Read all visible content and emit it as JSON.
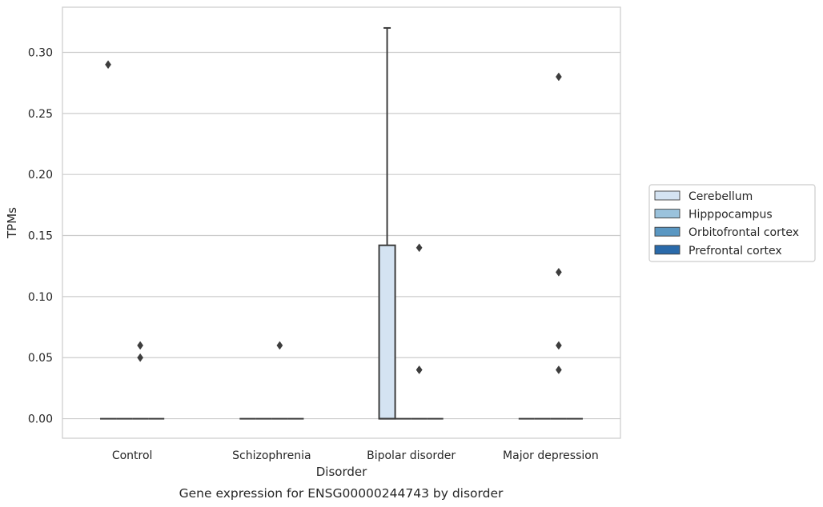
{
  "chart_data": {
    "type": "box",
    "xlabel": "Disorder",
    "ylabel": "TPMs",
    "caption": "Gene expression for ENSG00000244743 by disorder",
    "categories": [
      "Control",
      "Schizophrenia",
      "Bipolar disorder",
      "Major depression"
    ],
    "ylim": [
      -0.016,
      0.337
    ],
    "yticks": [
      "0.00",
      "0.05",
      "0.10",
      "0.15",
      "0.20",
      "0.25",
      "0.30"
    ],
    "ytick_values": [
      0,
      0.05,
      0.1,
      0.15,
      0.2,
      0.25,
      0.3
    ],
    "grid": true,
    "legend_position": "right",
    "series": [
      {
        "name": "Cerebellum",
        "color": "#d4e3f2",
        "boxes": [
          {
            "q1": 0,
            "median": 0,
            "q3": 0,
            "whisker_low": 0,
            "whisker_high": 0,
            "outliers": [
              0.29
            ]
          },
          {
            "q1": 0,
            "median": 0,
            "q3": 0,
            "whisker_low": 0,
            "whisker_high": 0,
            "outliers": []
          },
          {
            "q1": 0,
            "median": 0,
            "q3": 0.142,
            "whisker_low": 0,
            "whisker_high": 0.32,
            "outliers": []
          },
          {
            "q1": 0,
            "median": 0,
            "q3": 0,
            "whisker_low": 0,
            "whisker_high": 0,
            "outliers": []
          }
        ]
      },
      {
        "name": "Hipppocampus",
        "color": "#9ac2dc",
        "boxes": [
          {
            "q1": 0,
            "median": 0,
            "q3": 0,
            "whisker_low": 0,
            "whisker_high": 0,
            "outliers": []
          },
          {
            "q1": 0,
            "median": 0,
            "q3": 0,
            "whisker_low": 0,
            "whisker_high": 0,
            "outliers": []
          },
          {
            "q1": 0,
            "median": 0,
            "q3": 0,
            "whisker_low": 0,
            "whisker_high": 0,
            "outliers": []
          },
          {
            "q1": 0,
            "median": 0,
            "q3": 0,
            "whisker_low": 0,
            "whisker_high": 0,
            "outliers": []
          }
        ]
      },
      {
        "name": "Orbitofrontal cortex",
        "color": "#5a97c2",
        "boxes": [
          {
            "q1": 0,
            "median": 0,
            "q3": 0,
            "whisker_low": 0,
            "whisker_high": 0,
            "outliers": [
              0.06,
              0.05
            ]
          },
          {
            "q1": 0,
            "median": 0,
            "q3": 0,
            "whisker_low": 0,
            "whisker_high": 0,
            "outliers": [
              0.06
            ]
          },
          {
            "q1": 0,
            "median": 0,
            "q3": 0,
            "whisker_low": 0,
            "whisker_high": 0,
            "outliers": [
              0.14,
              0.04,
              0.04
            ]
          },
          {
            "q1": 0,
            "median": 0,
            "q3": 0,
            "whisker_low": 0,
            "whisker_high": 0,
            "outliers": [
              0.28,
              0.12,
              0.06,
              0.04
            ]
          }
        ]
      },
      {
        "name": "Prefrontal cortex",
        "color": "#2a6aaa",
        "boxes": [
          {
            "q1": 0,
            "median": 0,
            "q3": 0,
            "whisker_low": 0,
            "whisker_high": 0,
            "outliers": []
          },
          {
            "q1": 0,
            "median": 0,
            "q3": 0,
            "whisker_low": 0,
            "whisker_high": 0,
            "outliers": []
          },
          {
            "q1": 0,
            "median": 0,
            "q3": 0,
            "whisker_low": 0,
            "whisker_high": 0,
            "outliers": []
          },
          {
            "q1": 0,
            "median": 0,
            "q3": 0,
            "whisker_low": 0,
            "whisker_high": 0,
            "outliers": []
          }
        ]
      }
    ]
  }
}
